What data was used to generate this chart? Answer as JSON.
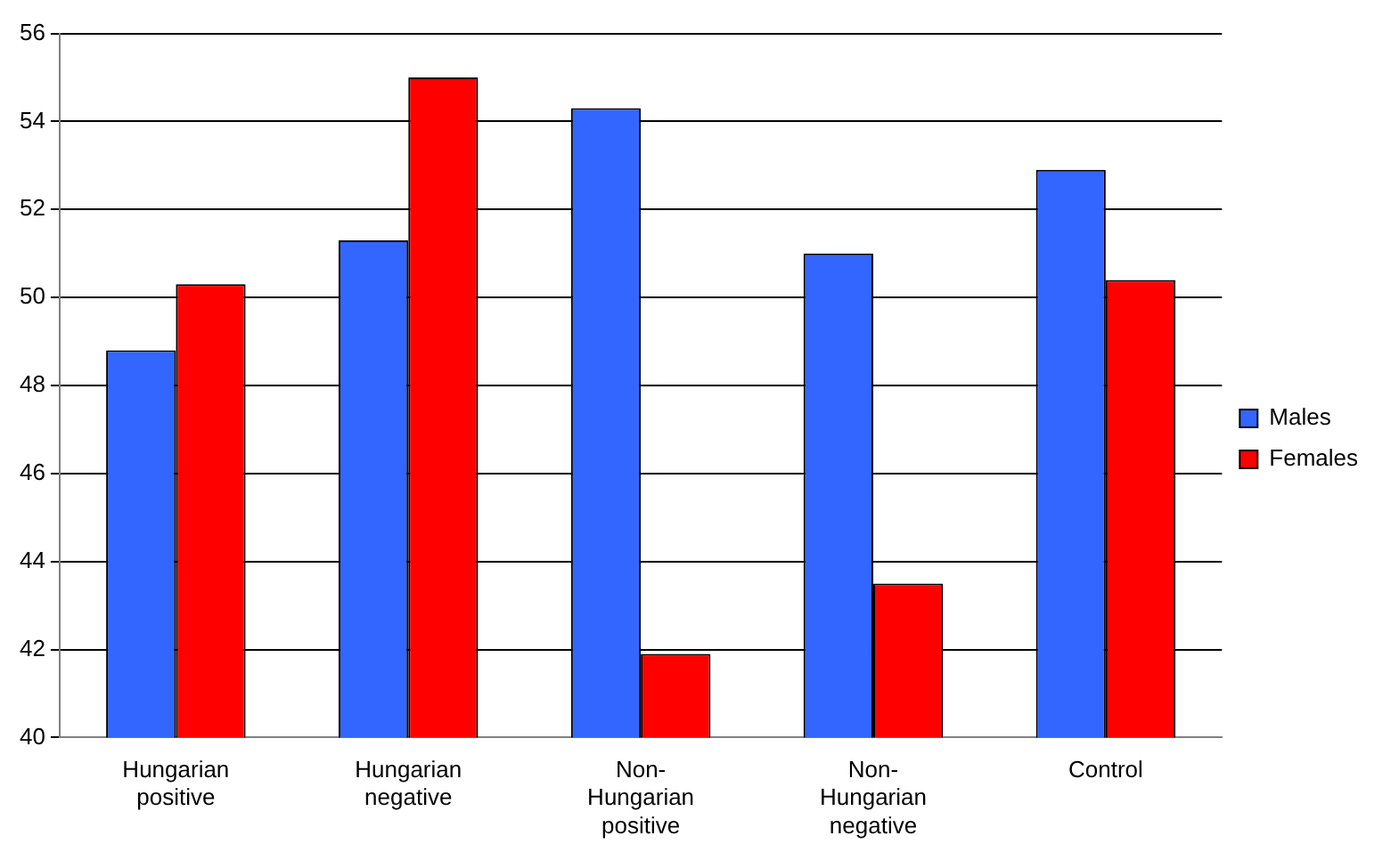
{
  "chart_data": {
    "type": "bar",
    "categories": [
      "Hungarian positive",
      "Hungarian negative",
      "Non-Hungarian positive",
      "Non-Hungarian negative",
      "Control"
    ],
    "series": [
      {
        "name": "Males",
        "color": "#3366ff",
        "values": [
          48.8,
          51.3,
          54.3,
          51.0,
          52.9
        ]
      },
      {
        "name": "Females",
        "color": "#ff0000",
        "values": [
          50.3,
          55.0,
          41.9,
          43.5,
          50.4
        ]
      }
    ],
    "ylim": [
      40,
      56
    ],
    "yticks": [
      40,
      42,
      44,
      46,
      48,
      50,
      52,
      54,
      56
    ],
    "grid": "y",
    "legend": "right"
  }
}
